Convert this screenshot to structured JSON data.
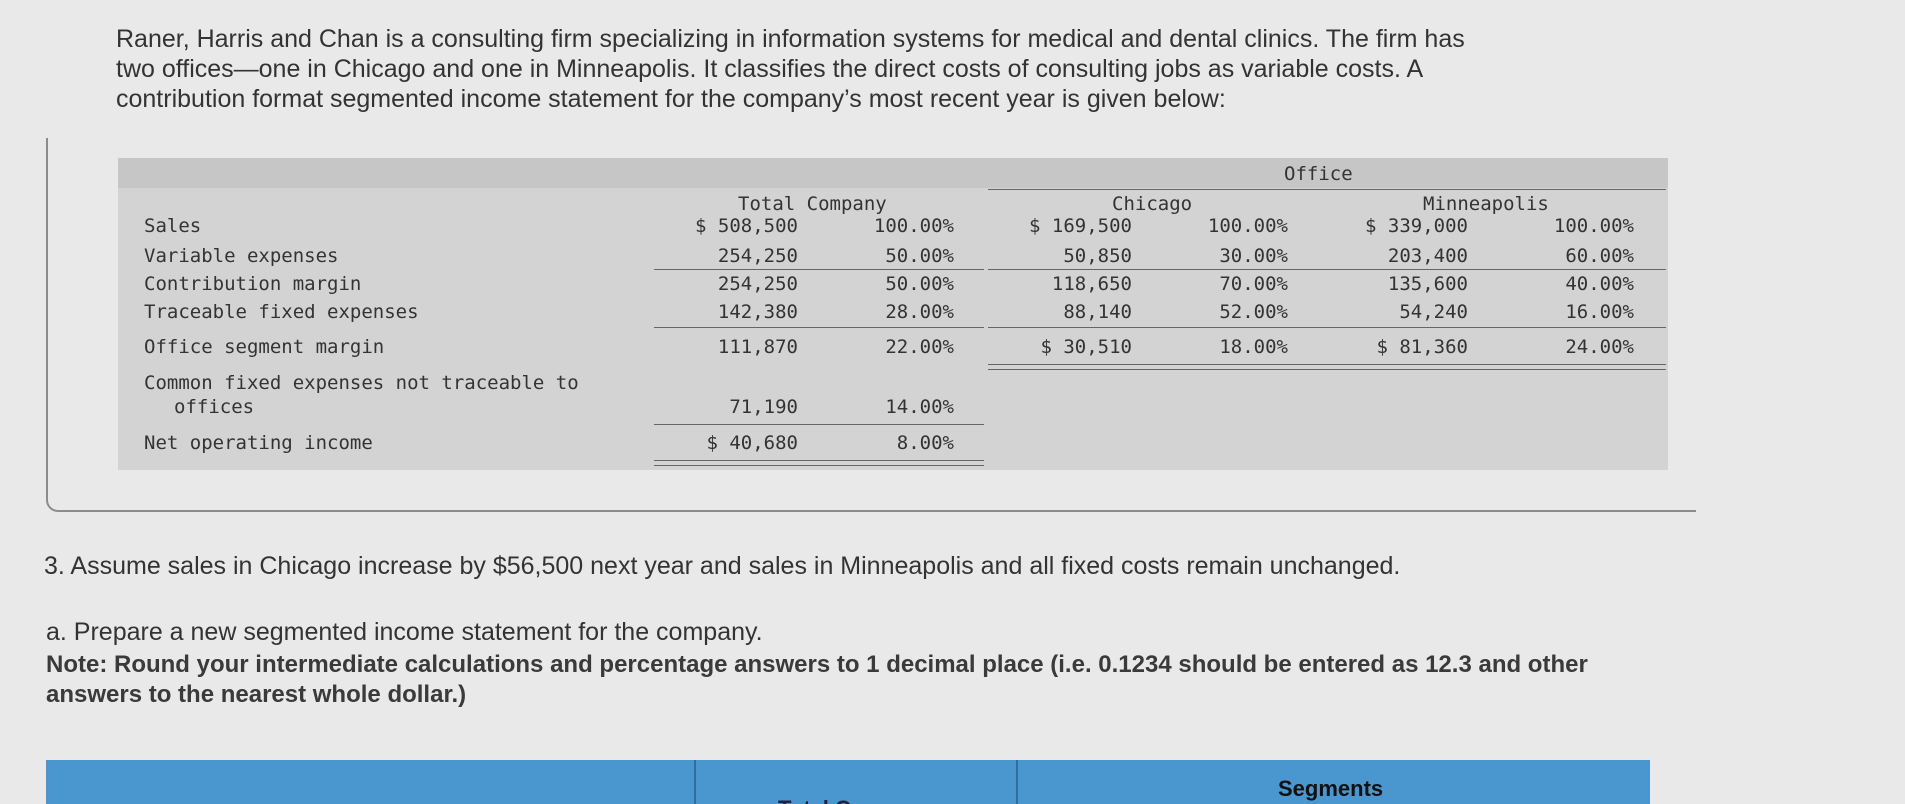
{
  "intro": {
    "line1": "Raner, Harris and Chan is a consulting firm specializing in information systems for medical and dental clinics. The firm has",
    "line2": "two offices—one in Chicago and one in Minneapolis. It classifies the direct costs of consulting jobs as variable costs. A",
    "line3": "contribution format segmented income statement for the company’s most recent year is given below:"
  },
  "table": {
    "office_header": "Office",
    "total_header": "Total Company",
    "chicago_header": "Chicago",
    "minneapolis_header": "Minneapolis",
    "rows": [
      {
        "label": "Sales",
        "total": "$ 508,500",
        "total_pct": "100.00%",
        "chi": "$ 169,500",
        "chi_pct": "100.00%",
        "min": "$ 339,000",
        "min_pct": "100.00%"
      },
      {
        "label": "Variable expenses",
        "total": "254,250",
        "total_pct": "50.00%",
        "chi": "50,850",
        "chi_pct": "30.00%",
        "min": "203,400",
        "min_pct": "60.00%"
      },
      {
        "label": "Contribution margin",
        "total": "254,250",
        "total_pct": "50.00%",
        "chi": "118,650",
        "chi_pct": "70.00%",
        "min": "135,600",
        "min_pct": "40.00%"
      },
      {
        "label": "Traceable fixed expenses",
        "total": "142,380",
        "total_pct": "28.00%",
        "chi": "88,140",
        "chi_pct": "52.00%",
        "min": "54,240",
        "min_pct": "16.00%"
      },
      {
        "label": "Office segment margin",
        "total": "111,870",
        "total_pct": "22.00%",
        "chi": "$ 30,510",
        "chi_pct": "18.00%",
        "min": "$ 81,360",
        "min_pct": "24.00%"
      }
    ],
    "common_label_1": "Common fixed expenses not traceable to",
    "common_label_2": "offices",
    "common_total": "71,190",
    "common_pct": "14.00%",
    "noi_label": "Net operating income",
    "noi_total": "$ 40,680",
    "noi_pct": "8.00%"
  },
  "question3": "3. Assume sales in Chicago increase by $56,500 next year and sales in Minneapolis and all fixed costs remain unchanged.",
  "part_a": "a. Prepare a new segmented income statement for the company.",
  "note": "Note: Round your intermediate calculations and percentage answers to 1 decimal place (i.e. 0.1234 should be entered as 12.3 and other answers to the nearest whole dollar.)",
  "answer_table": {
    "segments_header": "Segments",
    "total_company_header": "Total Company",
    "header_color": "#4a97cf"
  }
}
